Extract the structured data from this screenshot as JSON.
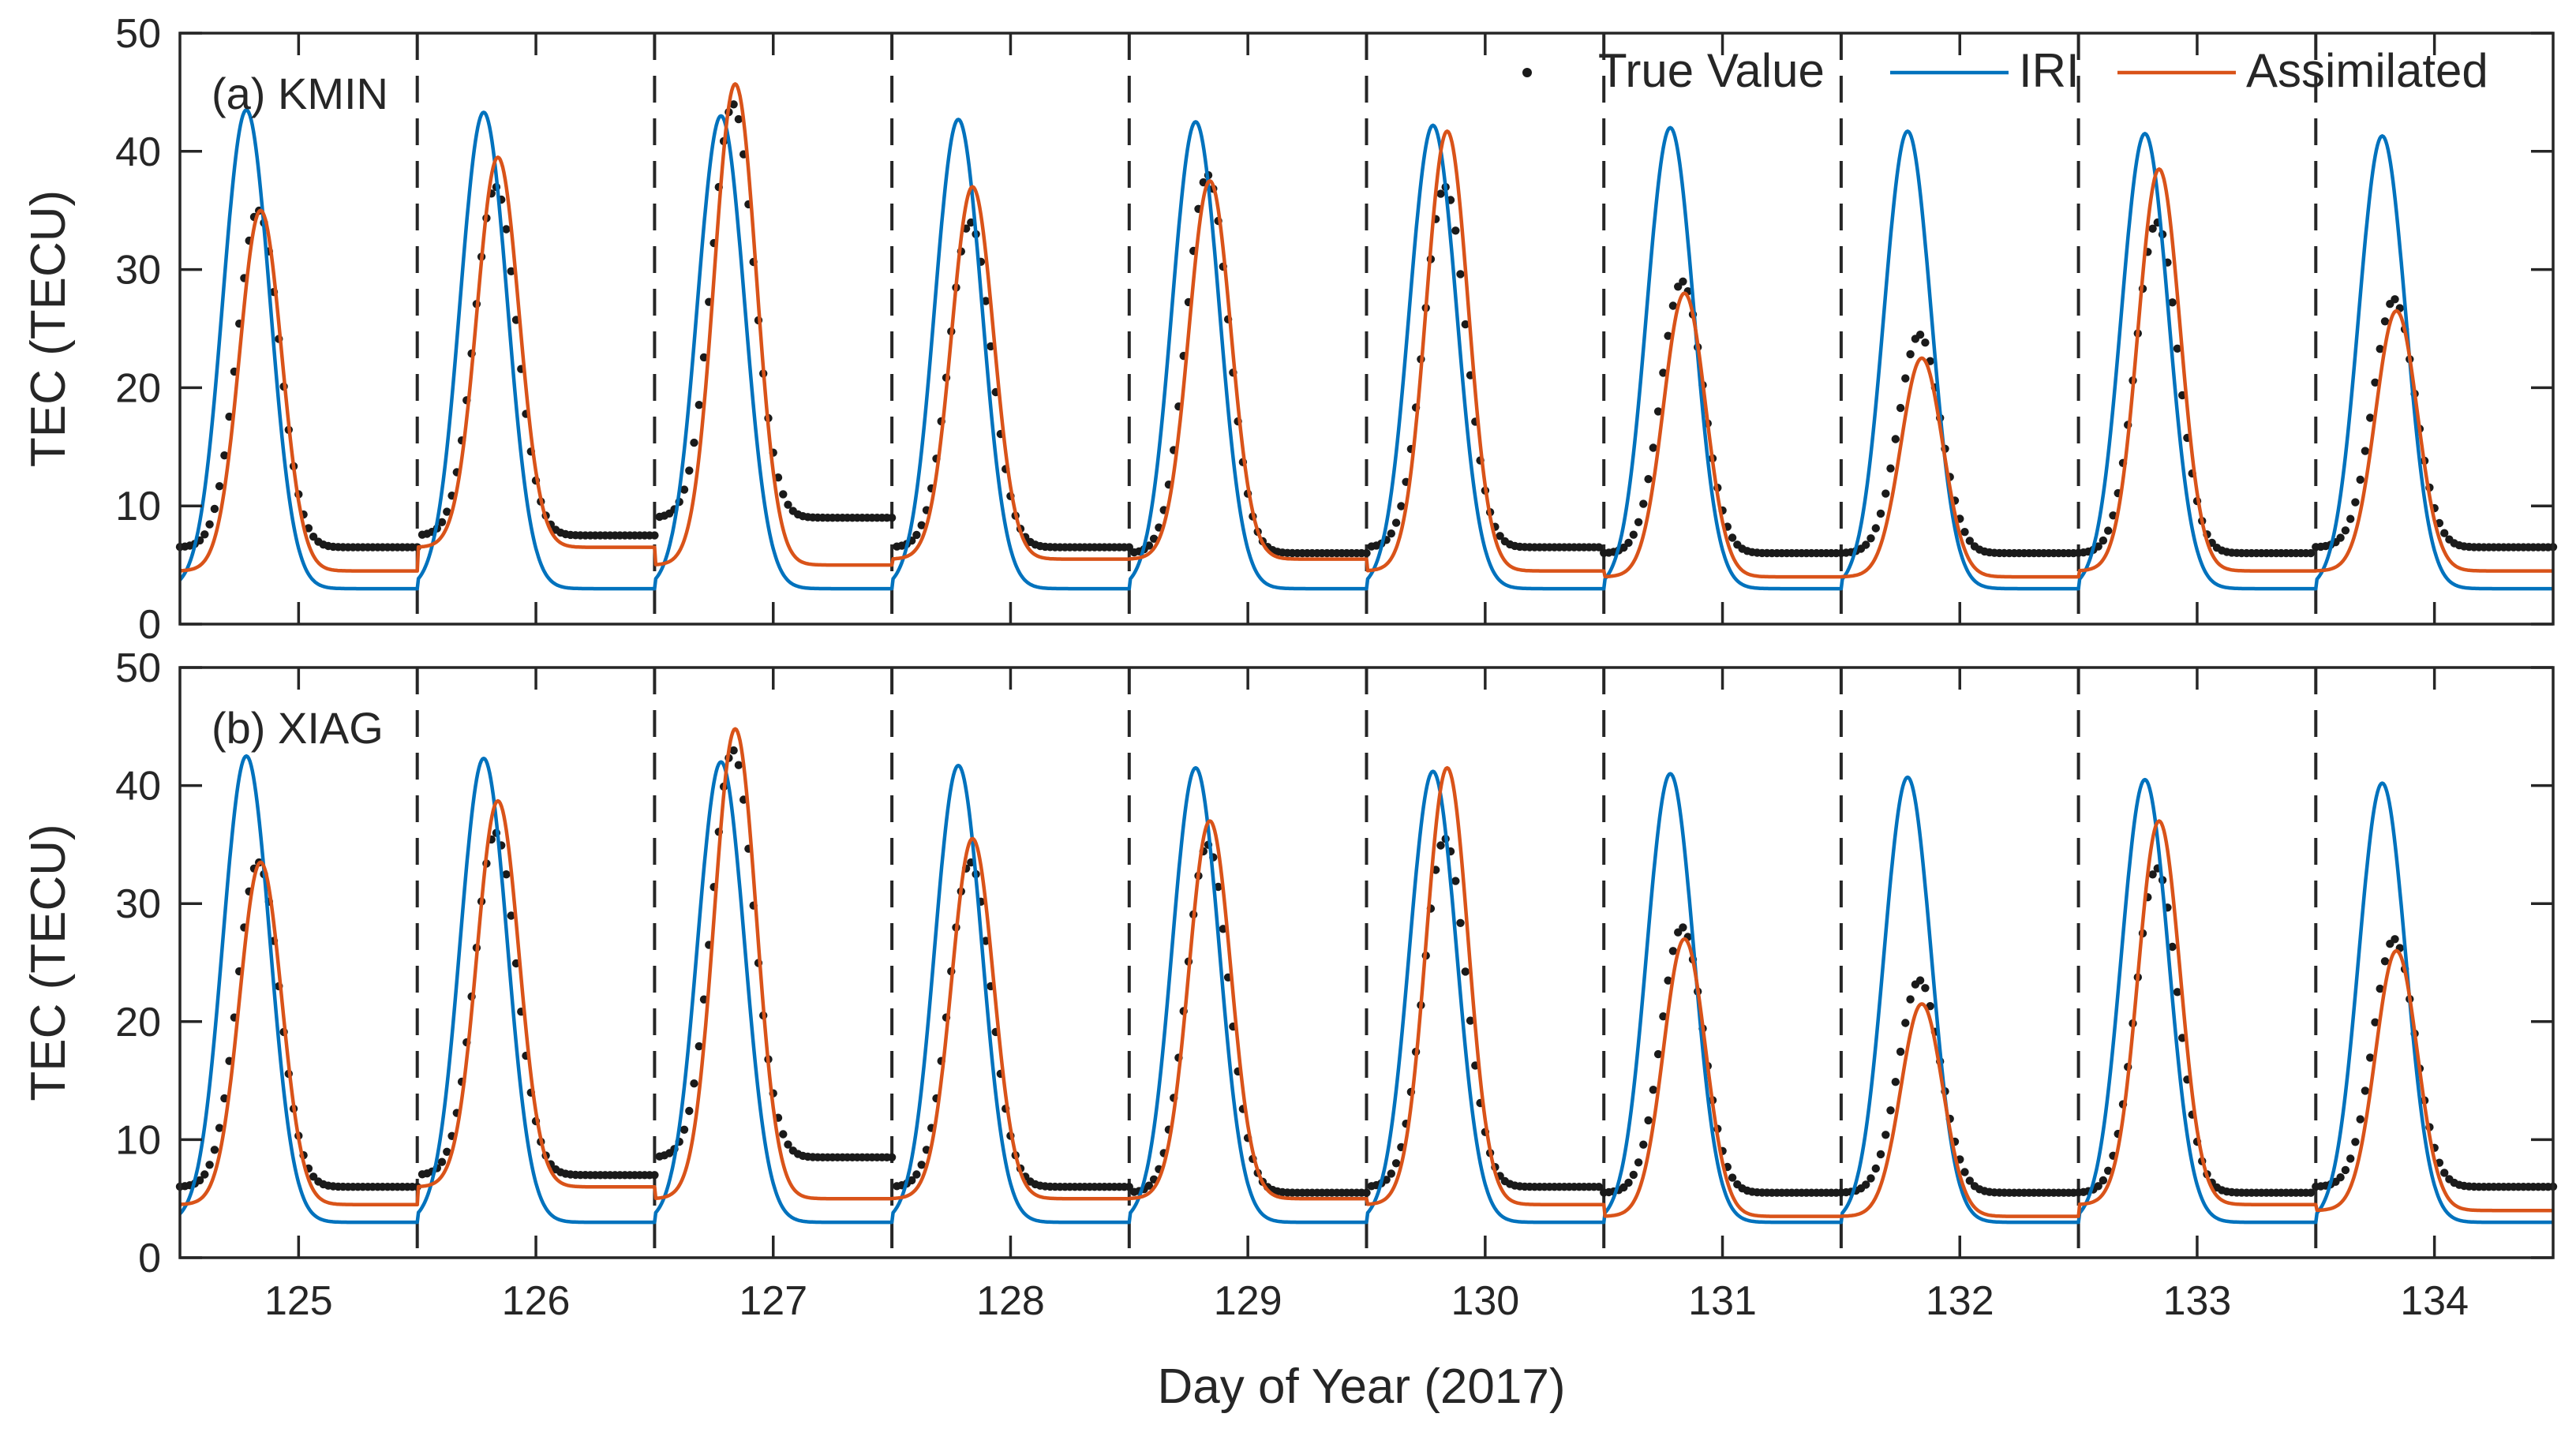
{
  "figure": {
    "xlabel": "Day of Year (2017)",
    "colors": {
      "true": "#1a1a1a",
      "iri": "#0072BD",
      "assim": "#D95319",
      "axis": "#262626"
    },
    "legend": [
      {
        "key": "true",
        "label": "True Value",
        "marker": "dot"
      },
      {
        "key": "iri",
        "label": "IRI",
        "marker": "line"
      },
      {
        "key": "assim",
        "label": "Assimilated",
        "marker": "line"
      }
    ]
  },
  "chart_data": [
    {
      "type": "line",
      "title": "(a) KMIN",
      "xlabel": "Day of Year (2017)",
      "ylabel": "TEC (TECU)",
      "xlim": [
        124.5,
        134.5
      ],
      "ylim": [
        0,
        50
      ],
      "xticks": [
        125,
        126,
        127,
        128,
        129,
        130,
        131,
        132,
        133,
        134
      ],
      "yticks": [
        0,
        10,
        20,
        30,
        40,
        50
      ],
      "day_boundaries": [
        125.5,
        126.5,
        127.5,
        128.5,
        129.5,
        130.5,
        131.5,
        132.5,
        133.5
      ],
      "days": [
        125,
        126,
        127,
        128,
        129,
        130,
        131,
        132,
        133,
        134
      ],
      "series": [
        {
          "name": "True Value",
          "key": "true",
          "style": "dots",
          "daily_peak": [
            35,
            37,
            44,
            34,
            38,
            37,
            29,
            24.5,
            34,
            27.5
          ],
          "night_level": [
            6.5,
            7.5,
            9,
            6.5,
            6,
            6.5,
            6,
            6,
            6,
            6.5
          ]
        },
        {
          "name": "IRI",
          "key": "iri",
          "style": "line",
          "daily_peak": [
            43.5,
            43.3,
            43,
            42.7,
            42.5,
            42.2,
            42,
            41.7,
            41.5,
            41.3
          ],
          "night_level": [
            3,
            3,
            3,
            3,
            3,
            3,
            3,
            3,
            3,
            3
          ]
        },
        {
          "name": "Assimilated",
          "key": "assim",
          "style": "line",
          "daily_peak": [
            35,
            39.5,
            45.7,
            37,
            37.5,
            41.7,
            28,
            22.5,
            38.5,
            26.5
          ],
          "night_level": [
            4.5,
            6.5,
            5,
            5.5,
            5.5,
            4.5,
            4,
            4,
            4.5,
            4.5
          ]
        }
      ]
    },
    {
      "type": "line",
      "title": "(b) XIAG",
      "xlabel": "Day of Year (2017)",
      "ylabel": "TEC (TECU)",
      "xlim": [
        124.5,
        134.5
      ],
      "ylim": [
        0,
        50
      ],
      "xticks": [
        125,
        126,
        127,
        128,
        129,
        130,
        131,
        132,
        133,
        134
      ],
      "yticks": [
        0,
        10,
        20,
        30,
        40,
        50
      ],
      "day_boundaries": [
        125.5,
        126.5,
        127.5,
        128.5,
        129.5,
        130.5,
        131.5,
        132.5,
        133.5
      ],
      "days": [
        125,
        126,
        127,
        128,
        129,
        130,
        131,
        132,
        133,
        134
      ],
      "series": [
        {
          "name": "True Value",
          "key": "true",
          "style": "dots",
          "daily_peak": [
            33.5,
            36,
            43,
            33.5,
            35,
            35.5,
            28,
            23.5,
            33,
            27
          ],
          "night_level": [
            6,
            7,
            8.5,
            6,
            5.5,
            6,
            5.5,
            5.5,
            5.5,
            6
          ]
        },
        {
          "name": "IRI",
          "key": "iri",
          "style": "line",
          "daily_peak": [
            42.5,
            42.3,
            42,
            41.7,
            41.5,
            41.2,
            41,
            40.7,
            40.5,
            40.2
          ],
          "night_level": [
            3,
            3,
            3,
            3,
            3,
            3,
            3,
            3,
            3,
            3
          ]
        },
        {
          "name": "Assimilated",
          "key": "assim",
          "style": "line",
          "daily_peak": [
            33.5,
            38.7,
            44.8,
            35.5,
            37,
            41.5,
            27,
            21.5,
            37,
            26
          ],
          "night_level": [
            4.5,
            6,
            5,
            5,
            5,
            4.5,
            3.5,
            3.5,
            4.5,
            4
          ]
        }
      ]
    }
  ]
}
